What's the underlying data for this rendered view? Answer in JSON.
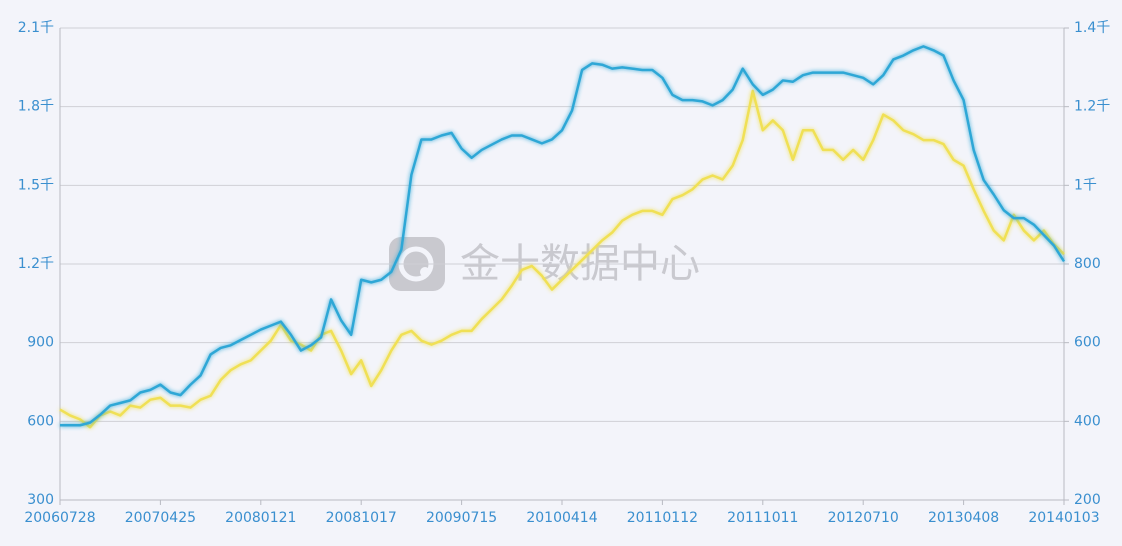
{
  "chart_data": {
    "type": "line",
    "watermark": "金十数据中心",
    "categories": [
      "20060728",
      null,
      null,
      null,
      null,
      null,
      null,
      null,
      null,
      null,
      "20070425",
      null,
      null,
      null,
      null,
      null,
      null,
      null,
      null,
      null,
      "20080121",
      null,
      null,
      null,
      null,
      null,
      null,
      null,
      null,
      null,
      "20081017",
      null,
      null,
      null,
      null,
      null,
      null,
      null,
      null,
      null,
      "20090715",
      null,
      null,
      null,
      null,
      null,
      null,
      null,
      null,
      null,
      "20100414",
      null,
      null,
      null,
      null,
      null,
      null,
      null,
      null,
      null,
      "20110112",
      null,
      null,
      null,
      null,
      null,
      null,
      null,
      null,
      null,
      "20111011",
      null,
      null,
      null,
      null,
      null,
      null,
      null,
      null,
      null,
      "20120710",
      null,
      null,
      null,
      null,
      null,
      null,
      null,
      null,
      null,
      "20130408",
      null,
      null,
      null,
      null,
      null,
      null,
      null,
      null,
      null,
      "20140103"
    ],
    "series": [
      {
        "color": "#2ea7d6",
        "axis": "y",
        "values": [
          585,
          585,
          585,
          595,
          625,
          660,
          670,
          680,
          710,
          720,
          740,
          710,
          700,
          740,
          775,
          855,
          880,
          890,
          910,
          930,
          950,
          965,
          980,
          930,
          870,
          890,
          920,
          1065,
          985,
          930,
          1140,
          1130,
          1140,
          1170,
          1255,
          1540,
          1675,
          1675,
          1690,
          1700,
          1640,
          1605,
          1635,
          1655,
          1675,
          1690,
          1690,
          1675,
          1660,
          1675,
          1710,
          1785,
          1940,
          1965,
          1960,
          1945,
          1950,
          1945,
          1940,
          1940,
          1910,
          1845,
          1825,
          1825,
          1820,
          1805,
          1825,
          1865,
          1945,
          1885,
          1845,
          1865,
          1900,
          1895,
          1920,
          1930,
          1930,
          1930,
          1930,
          1920,
          1910,
          1885,
          1920,
          1980,
          1995,
          2015,
          2030,
          2015,
          1995,
          1900,
          1825,
          1635,
          1520,
          1465,
          1405,
          1375,
          1375,
          1350,
          1310,
          1270,
          1210
        ]
      },
      {
        "color": "#f0e055",
        "axis": "y2",
        "values": [
          430,
          415,
          405,
          385,
          415,
          425,
          415,
          440,
          435,
          455,
          460,
          440,
          440,
          435,
          455,
          465,
          505,
          530,
          545,
          555,
          580,
          605,
          645,
          605,
          595,
          580,
          620,
          630,
          580,
          520,
          555,
          490,
          530,
          580,
          620,
          630,
          605,
          595,
          605,
          620,
          630,
          630,
          660,
          685,
          710,
          745,
          785,
          795,
          770,
          735,
          760,
          785,
          810,
          835,
          860,
          880,
          910,
          925,
          935,
          935,
          925,
          965,
          975,
          990,
          1015,
          1025,
          1015,
          1050,
          1115,
          1240,
          1140,
          1165,
          1140,
          1065,
          1140,
          1140,
          1090,
          1090,
          1065,
          1090,
          1065,
          1115,
          1180,
          1165,
          1140,
          1130,
          1115,
          1115,
          1105,
          1065,
          1050,
          990,
          935,
          885,
          860,
          925,
          885,
          860,
          885,
          850,
          825
        ]
      }
    ],
    "ylim": [
      300,
      2100
    ],
    "yticks": [
      300,
      600,
      900,
      {
        "value": 1200,
        "label": "1.2千"
      },
      {
        "value": 1500,
        "label": "1.5千"
      },
      {
        "value": 1800,
        "label": "1.8千"
      },
      {
        "value": 2100,
        "label": "2.1千"
      }
    ],
    "y2lim": [
      200,
      1400
    ],
    "y2ticks": [
      200,
      400,
      600,
      800,
      {
        "value": 1000,
        "label": "1千"
      },
      {
        "value": 1200,
        "label": "1.2千"
      },
      {
        "value": 1400,
        "label": "1.4千"
      }
    ],
    "grid": true
  }
}
